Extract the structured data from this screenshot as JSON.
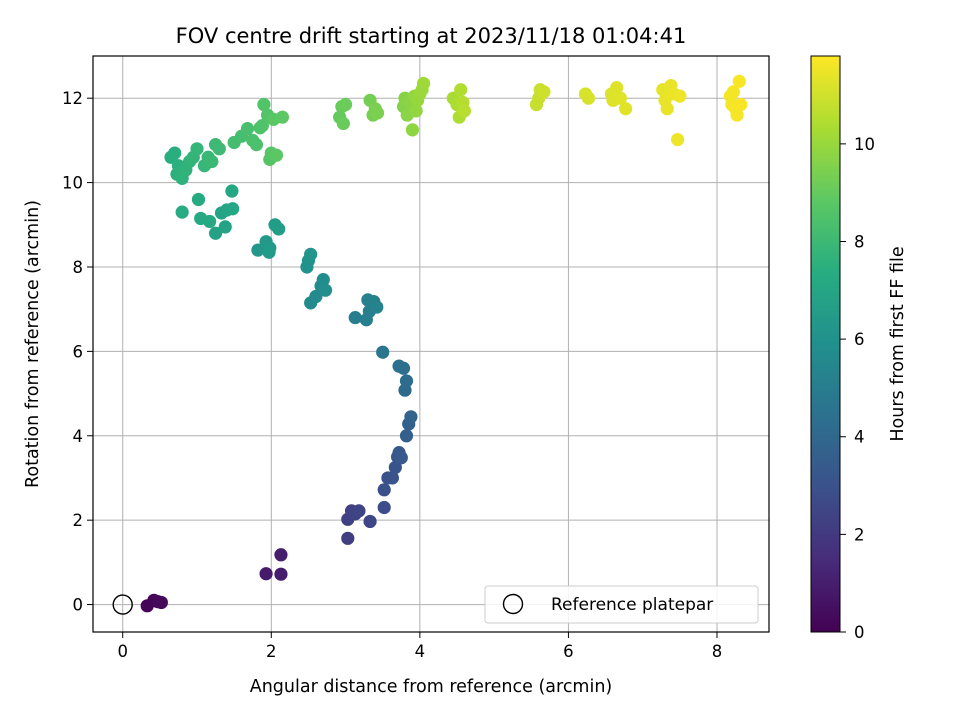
{
  "chart_data": {
    "type": "scatter",
    "title": "FOV centre drift starting at 2023/11/18 01:04:41",
    "xlabel": "Angular distance from reference (arcmin)",
    "ylabel": "Rotation from reference (arcmin)",
    "xlim": [
      -0.4,
      8.7
    ],
    "ylim": [
      -0.65,
      13.0
    ],
    "x_ticks": [
      0,
      2,
      4,
      6,
      8
    ],
    "y_ticks": [
      0,
      2,
      4,
      6,
      8,
      10,
      12
    ],
    "grid": true,
    "legend": {
      "placement": "lower-right",
      "entries": [
        "Reference platepar"
      ]
    },
    "colorbar": {
      "label": "Hours from first FF file",
      "range": [
        0,
        11.8
      ],
      "ticks": [
        0,
        2,
        4,
        6,
        8,
        10
      ],
      "colormap": "viridis"
    },
    "reference_point": {
      "x": 0,
      "y": 0
    },
    "series": [
      {
        "hours_field": "c",
        "points": [
          {
            "x": 0.33,
            "y": -0.03,
            "c": 0.1
          },
          {
            "x": 0.42,
            "y": 0.1,
            "c": 0.15
          },
          {
            "x": 0.47,
            "y": 0.07,
            "c": 0.2
          },
          {
            "x": 0.52,
            "y": 0.05,
            "c": 0.25
          },
          {
            "x": 1.93,
            "y": 0.73,
            "c": 0.9
          },
          {
            "x": 2.13,
            "y": 0.72,
            "c": 0.95
          },
          {
            "x": 2.13,
            "y": 1.18,
            "c": 1.0
          },
          {
            "x": 3.03,
            "y": 1.57,
            "c": 2.2
          },
          {
            "x": 3.03,
            "y": 2.02,
            "c": 2.3
          },
          {
            "x": 3.08,
            "y": 2.22,
            "c": 2.35
          },
          {
            "x": 3.13,
            "y": 2.15,
            "c": 2.4
          },
          {
            "x": 3.18,
            "y": 2.22,
            "c": 2.45
          },
          {
            "x": 3.33,
            "y": 1.97,
            "c": 2.5
          },
          {
            "x": 3.52,
            "y": 2.3,
            "c": 2.8
          },
          {
            "x": 3.52,
            "y": 2.72,
            "c": 2.9
          },
          {
            "x": 3.57,
            "y": 3.0,
            "c": 3.0
          },
          {
            "x": 3.63,
            "y": 3.0,
            "c": 3.05
          },
          {
            "x": 3.67,
            "y": 3.25,
            "c": 3.1
          },
          {
            "x": 3.7,
            "y": 3.5,
            "c": 3.2
          },
          {
            "x": 3.72,
            "y": 3.6,
            "c": 3.25
          },
          {
            "x": 3.75,
            "y": 3.48,
            "c": 3.3
          },
          {
            "x": 3.82,
            "y": 4.0,
            "c": 3.6
          },
          {
            "x": 3.85,
            "y": 4.28,
            "c": 3.7
          },
          {
            "x": 3.88,
            "y": 4.45,
            "c": 3.8
          },
          {
            "x": 3.8,
            "y": 5.08,
            "c": 4.1
          },
          {
            "x": 3.82,
            "y": 5.3,
            "c": 4.2
          },
          {
            "x": 3.78,
            "y": 5.6,
            "c": 4.3
          },
          {
            "x": 3.72,
            "y": 5.65,
            "c": 4.35
          },
          {
            "x": 3.5,
            "y": 5.98,
            "c": 4.6
          },
          {
            "x": 3.13,
            "y": 6.8,
            "c": 5.0
          },
          {
            "x": 3.28,
            "y": 6.75,
            "c": 5.05
          },
          {
            "x": 3.32,
            "y": 6.95,
            "c": 5.1
          },
          {
            "x": 3.3,
            "y": 7.22,
            "c": 5.15
          },
          {
            "x": 3.38,
            "y": 7.18,
            "c": 5.2
          },
          {
            "x": 3.42,
            "y": 7.05,
            "c": 5.25
          },
          {
            "x": 2.53,
            "y": 7.15,
            "c": 5.6
          },
          {
            "x": 2.6,
            "y": 7.3,
            "c": 5.65
          },
          {
            "x": 2.67,
            "y": 7.55,
            "c": 5.7
          },
          {
            "x": 2.7,
            "y": 7.7,
            "c": 5.75
          },
          {
            "x": 2.73,
            "y": 7.45,
            "c": 5.8
          },
          {
            "x": 2.48,
            "y": 8.0,
            "c": 6.0
          },
          {
            "x": 2.5,
            "y": 8.15,
            "c": 6.05
          },
          {
            "x": 2.53,
            "y": 8.3,
            "c": 6.1
          },
          {
            "x": 1.82,
            "y": 8.4,
            "c": 6.3
          },
          {
            "x": 1.93,
            "y": 8.6,
            "c": 6.35
          },
          {
            "x": 1.98,
            "y": 8.45,
            "c": 6.4
          },
          {
            "x": 1.97,
            "y": 8.35,
            "c": 6.45
          },
          {
            "x": 2.05,
            "y": 9.0,
            "c": 6.5
          },
          {
            "x": 2.1,
            "y": 8.9,
            "c": 6.55
          },
          {
            "x": 1.25,
            "y": 8.8,
            "c": 6.8
          },
          {
            "x": 1.33,
            "y": 9.28,
            "c": 6.85
          },
          {
            "x": 1.38,
            "y": 8.95,
            "c": 6.9
          },
          {
            "x": 1.4,
            "y": 9.35,
            "c": 6.95
          },
          {
            "x": 1.48,
            "y": 9.38,
            "c": 7.0
          },
          {
            "x": 1.47,
            "y": 9.8,
            "c": 7.05
          },
          {
            "x": 1.17,
            "y": 9.08,
            "c": 7.1
          },
          {
            "x": 1.05,
            "y": 9.15,
            "c": 7.15
          },
          {
            "x": 1.02,
            "y": 9.6,
            "c": 7.2
          },
          {
            "x": 0.8,
            "y": 9.3,
            "c": 7.25
          },
          {
            "x": 0.65,
            "y": 10.6,
            "c": 7.4
          },
          {
            "x": 0.7,
            "y": 10.7,
            "c": 7.45
          },
          {
            "x": 0.75,
            "y": 10.4,
            "c": 7.5
          },
          {
            "x": 0.73,
            "y": 10.2,
            "c": 7.55
          },
          {
            "x": 0.8,
            "y": 10.1,
            "c": 7.6
          },
          {
            "x": 0.85,
            "y": 10.3,
            "c": 7.65
          },
          {
            "x": 0.9,
            "y": 10.5,
            "c": 7.7
          },
          {
            "x": 0.95,
            "y": 10.6,
            "c": 7.75
          },
          {
            "x": 1.0,
            "y": 10.8,
            "c": 7.8
          },
          {
            "x": 1.1,
            "y": 10.4,
            "c": 7.85
          },
          {
            "x": 1.15,
            "y": 10.6,
            "c": 7.9
          },
          {
            "x": 1.2,
            "y": 10.5,
            "c": 7.95
          },
          {
            "x": 1.25,
            "y": 10.9,
            "c": 8.0
          },
          {
            "x": 1.3,
            "y": 10.8,
            "c": 8.05
          },
          {
            "x": 1.5,
            "y": 10.95,
            "c": 8.2
          },
          {
            "x": 1.6,
            "y": 11.1,
            "c": 8.25
          },
          {
            "x": 1.68,
            "y": 11.28,
            "c": 8.3
          },
          {
            "x": 1.75,
            "y": 11.0,
            "c": 8.35
          },
          {
            "x": 1.8,
            "y": 10.9,
            "c": 8.4
          },
          {
            "x": 1.85,
            "y": 11.3,
            "c": 8.45
          },
          {
            "x": 1.88,
            "y": 11.35,
            "c": 8.5
          },
          {
            "x": 1.9,
            "y": 11.85,
            "c": 8.55
          },
          {
            "x": 1.95,
            "y": 11.6,
            "c": 8.6
          },
          {
            "x": 1.98,
            "y": 10.55,
            "c": 8.65
          },
          {
            "x": 2.0,
            "y": 10.7,
            "c": 8.7
          },
          {
            "x": 2.03,
            "y": 11.5,
            "c": 8.75
          },
          {
            "x": 2.07,
            "y": 10.65,
            "c": 8.8
          },
          {
            "x": 2.15,
            "y": 11.55,
            "c": 8.85
          },
          {
            "x": 2.92,
            "y": 11.55,
            "c": 9.0
          },
          {
            "x": 2.95,
            "y": 11.8,
            "c": 9.05
          },
          {
            "x": 2.97,
            "y": 11.4,
            "c": 9.1
          },
          {
            "x": 3.0,
            "y": 11.85,
            "c": 9.15
          },
          {
            "x": 3.33,
            "y": 11.95,
            "c": 9.3
          },
          {
            "x": 3.37,
            "y": 11.6,
            "c": 9.35
          },
          {
            "x": 3.4,
            "y": 11.75,
            "c": 9.4
          },
          {
            "x": 3.43,
            "y": 11.65,
            "c": 9.45
          },
          {
            "x": 3.78,
            "y": 11.8,
            "c": 9.6
          },
          {
            "x": 3.8,
            "y": 12.0,
            "c": 9.65
          },
          {
            "x": 3.83,
            "y": 11.6,
            "c": 9.7
          },
          {
            "x": 3.87,
            "y": 11.9,
            "c": 9.75
          },
          {
            "x": 3.9,
            "y": 11.25,
            "c": 9.8
          },
          {
            "x": 3.93,
            "y": 12.05,
            "c": 9.85
          },
          {
            "x": 3.95,
            "y": 11.7,
            "c": 9.9
          },
          {
            "x": 3.97,
            "y": 11.95,
            "c": 9.95
          },
          {
            "x": 4.0,
            "y": 12.1,
            "c": 10.0
          },
          {
            "x": 4.03,
            "y": 12.2,
            "c": 10.05
          },
          {
            "x": 4.05,
            "y": 12.35,
            "c": 10.1
          },
          {
            "x": 4.45,
            "y": 12.0,
            "c": 10.3
          },
          {
            "x": 4.5,
            "y": 11.85,
            "c": 10.35
          },
          {
            "x": 4.53,
            "y": 11.55,
            "c": 10.4
          },
          {
            "x": 4.55,
            "y": 12.2,
            "c": 10.45
          },
          {
            "x": 4.58,
            "y": 11.9,
            "c": 10.5
          },
          {
            "x": 4.6,
            "y": 11.7,
            "c": 10.55
          },
          {
            "x": 5.57,
            "y": 11.85,
            "c": 10.8
          },
          {
            "x": 5.6,
            "y": 12.0,
            "c": 10.85
          },
          {
            "x": 5.62,
            "y": 12.2,
            "c": 10.9
          },
          {
            "x": 5.67,
            "y": 12.15,
            "c": 10.95
          },
          {
            "x": 6.23,
            "y": 12.1,
            "c": 11.1
          },
          {
            "x": 6.27,
            "y": 12.0,
            "c": 11.12
          },
          {
            "x": 6.58,
            "y": 12.1,
            "c": 11.2
          },
          {
            "x": 6.6,
            "y": 11.95,
            "c": 11.22
          },
          {
            "x": 6.65,
            "y": 12.25,
            "c": 11.25
          },
          {
            "x": 6.7,
            "y": 12.0,
            "c": 11.27
          },
          {
            "x": 6.77,
            "y": 11.75,
            "c": 11.3
          },
          {
            "x": 7.27,
            "y": 12.2,
            "c": 11.4
          },
          {
            "x": 7.3,
            "y": 11.95,
            "c": 11.42
          },
          {
            "x": 7.33,
            "y": 11.75,
            "c": 11.44
          },
          {
            "x": 7.38,
            "y": 12.3,
            "c": 11.46
          },
          {
            "x": 7.42,
            "y": 12.1,
            "c": 11.48
          },
          {
            "x": 7.47,
            "y": 11.02,
            "c": 11.5
          },
          {
            "x": 7.5,
            "y": 12.05,
            "c": 11.52
          },
          {
            "x": 8.18,
            "y": 12.05,
            "c": 11.6
          },
          {
            "x": 8.2,
            "y": 11.85,
            "c": 11.62
          },
          {
            "x": 8.22,
            "y": 12.15,
            "c": 11.64
          },
          {
            "x": 8.25,
            "y": 11.75,
            "c": 11.66
          },
          {
            "x": 8.27,
            "y": 11.6,
            "c": 11.68
          },
          {
            "x": 8.3,
            "y": 12.4,
            "c": 11.7
          },
          {
            "x": 8.32,
            "y": 11.85,
            "c": 11.72
          }
        ]
      }
    ]
  }
}
